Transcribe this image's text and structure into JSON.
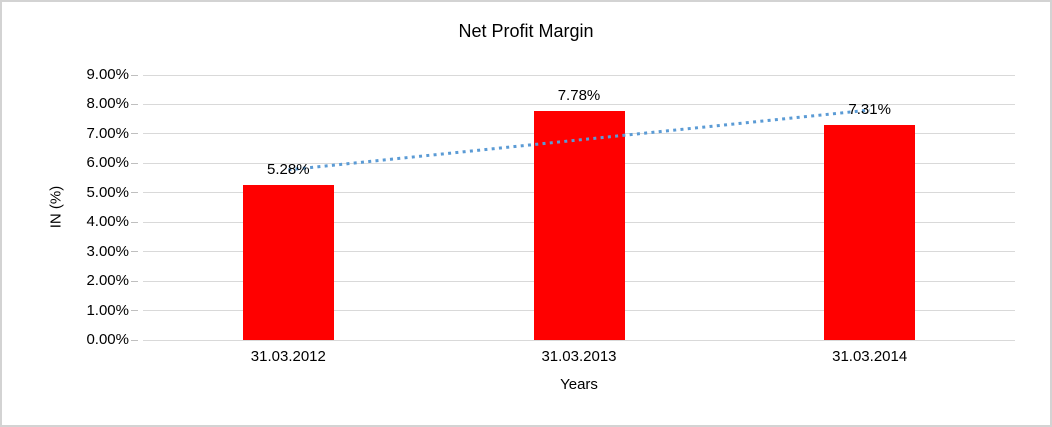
{
  "chart_data": {
    "type": "bar",
    "title": "Net Profit Margin",
    "xlabel": "Years",
    "ylabel": "IN (%)",
    "categories": [
      "31.03.2012",
      "31.03.2013",
      "31.03.2014"
    ],
    "series": [
      {
        "name": "Net Profit Margin",
        "values": [
          5.28,
          7.78,
          7.31
        ]
      }
    ],
    "data_labels": [
      "5.28%",
      "7.78%",
      "7.31%"
    ],
    "ytick_labels": [
      "0.00%",
      "1.00%",
      "2.00%",
      "3.00%",
      "4.00%",
      "5.00%",
      "6.00%",
      "7.00%",
      "8.00%",
      "9.00%"
    ],
    "ylim": [
      0,
      9
    ],
    "grid": true,
    "legend_position": "none",
    "bar_color": "#FF0000",
    "gridline_color": "#D9D9D9",
    "tick_color": "#BFBFBF",
    "text_color": "#000000",
    "trendline": {
      "type": "linear",
      "style": "dotted",
      "color": "#5B9BD5",
      "endpoint_values": [
        5.78,
        7.81
      ]
    }
  }
}
